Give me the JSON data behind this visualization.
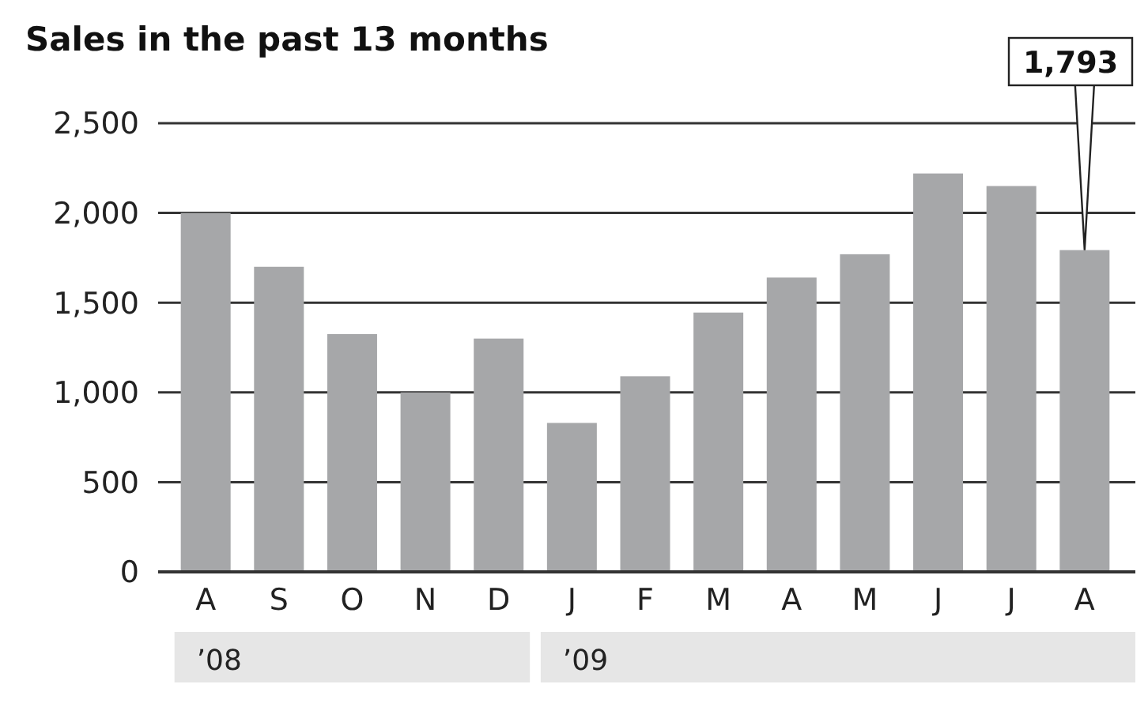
{
  "chart_data": {
    "type": "bar",
    "title": "Sales in the past 13 months",
    "categories": [
      "A",
      "S",
      "O",
      "N",
      "D",
      "J",
      "F",
      "M",
      "A",
      "M",
      "J",
      "J",
      "A"
    ],
    "values": [
      2000,
      1700,
      1325,
      1000,
      1300,
      830,
      1090,
      1445,
      1640,
      1770,
      2220,
      2150,
      1793
    ],
    "value_labels": [
      null,
      null,
      null,
      null,
      null,
      null,
      null,
      null,
      null,
      null,
      null,
      null,
      "1,793"
    ],
    "color": "#a6a7a9",
    "ylim": [
      0,
      2500
    ],
    "yticks": [
      0,
      500,
      {
        "value": 1000,
        "label": "1,000"
      },
      {
        "value": 1500,
        "label": "1,500"
      },
      {
        "value": 2000,
        "label": "2,000"
      },
      {
        "value": 2500,
        "label": "2,500"
      }
    ],
    "grid": "y",
    "annotations": [
      "’08",
      "’09"
    ]
  }
}
